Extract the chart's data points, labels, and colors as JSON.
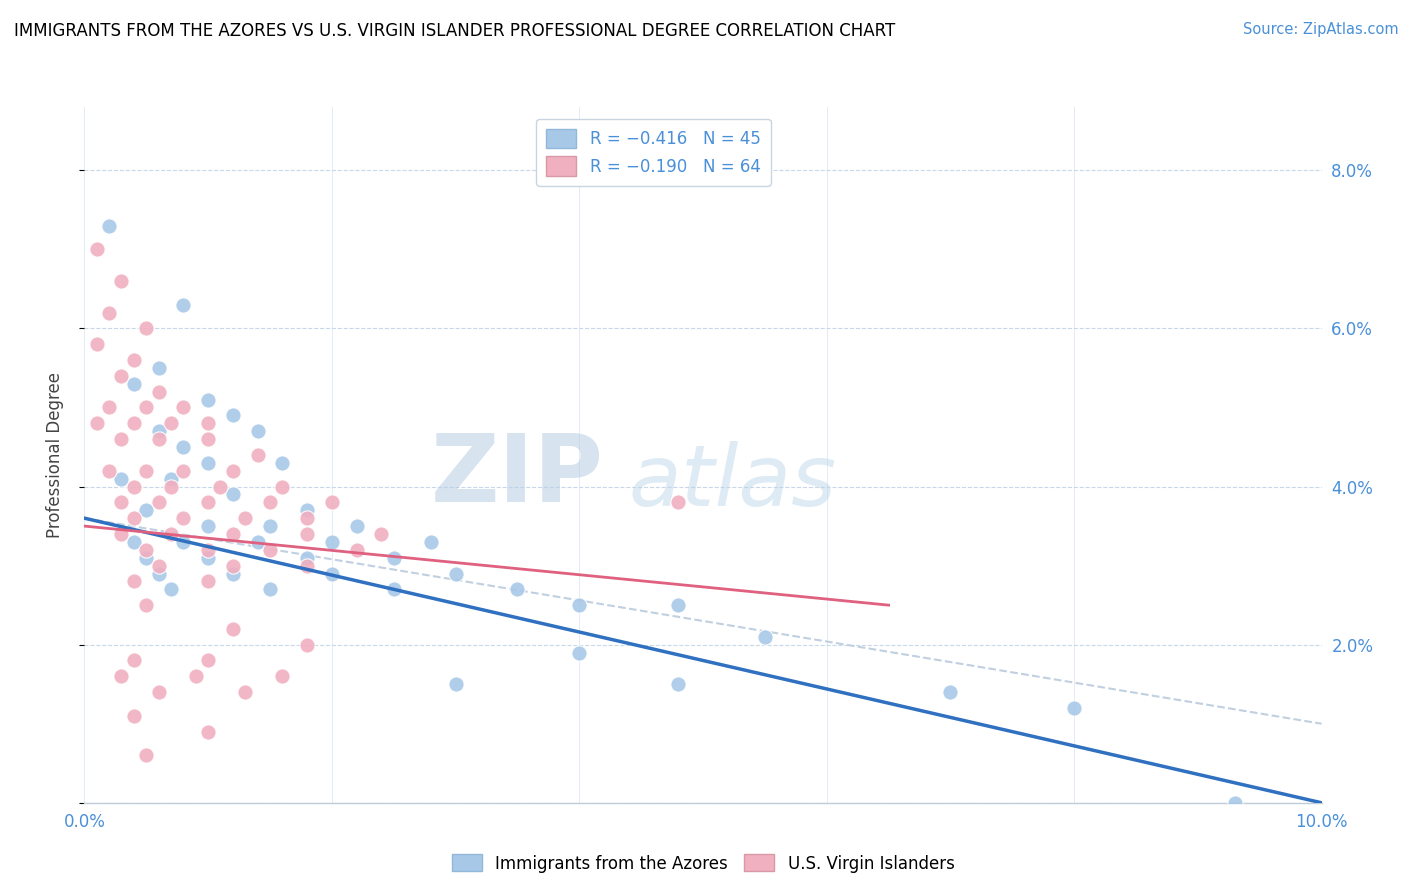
{
  "title": "IMMIGRANTS FROM THE AZORES VS U.S. VIRGIN ISLANDER PROFESSIONAL DEGREE CORRELATION CHART",
  "source": "Source: ZipAtlas.com",
  "ylabel": "Professional Degree",
  "xlim": [
    0.0,
    0.1
  ],
  "ylim": [
    0.0,
    0.088
  ],
  "blue_color": "#a8c8e8",
  "pink_color": "#f0b0c0",
  "blue_line_color": "#3070c0",
  "pink_line_color": "#e06080",
  "dashed_line_color": "#c0d0e0",
  "blue_scatter": [
    [
      0.002,
      0.073
    ],
    [
      0.008,
      0.063
    ],
    [
      0.006,
      0.055
    ],
    [
      0.004,
      0.053
    ],
    [
      0.01,
      0.051
    ],
    [
      0.012,
      0.049
    ],
    [
      0.006,
      0.047
    ],
    [
      0.014,
      0.047
    ],
    [
      0.008,
      0.045
    ],
    [
      0.01,
      0.043
    ],
    [
      0.016,
      0.043
    ],
    [
      0.003,
      0.041
    ],
    [
      0.007,
      0.041
    ],
    [
      0.012,
      0.039
    ],
    [
      0.018,
      0.037
    ],
    [
      0.005,
      0.037
    ],
    [
      0.01,
      0.035
    ],
    [
      0.015,
      0.035
    ],
    [
      0.022,
      0.035
    ],
    [
      0.004,
      0.033
    ],
    [
      0.008,
      0.033
    ],
    [
      0.014,
      0.033
    ],
    [
      0.02,
      0.033
    ],
    [
      0.028,
      0.033
    ],
    [
      0.005,
      0.031
    ],
    [
      0.01,
      0.031
    ],
    [
      0.018,
      0.031
    ],
    [
      0.025,
      0.031
    ],
    [
      0.006,
      0.029
    ],
    [
      0.012,
      0.029
    ],
    [
      0.02,
      0.029
    ],
    [
      0.03,
      0.029
    ],
    [
      0.007,
      0.027
    ],
    [
      0.015,
      0.027
    ],
    [
      0.025,
      0.027
    ],
    [
      0.035,
      0.027
    ],
    [
      0.04,
      0.025
    ],
    [
      0.048,
      0.025
    ],
    [
      0.055,
      0.021
    ],
    [
      0.04,
      0.019
    ],
    [
      0.03,
      0.015
    ],
    [
      0.048,
      0.015
    ],
    [
      0.07,
      0.014
    ],
    [
      0.08,
      0.012
    ],
    [
      0.093,
      0.0
    ]
  ],
  "pink_scatter": [
    [
      0.001,
      0.07
    ],
    [
      0.003,
      0.066
    ],
    [
      0.002,
      0.062
    ],
    [
      0.005,
      0.06
    ],
    [
      0.001,
      0.058
    ],
    [
      0.004,
      0.056
    ],
    [
      0.003,
      0.054
    ],
    [
      0.006,
      0.052
    ],
    [
      0.002,
      0.05
    ],
    [
      0.005,
      0.05
    ],
    [
      0.008,
      0.05
    ],
    [
      0.001,
      0.048
    ],
    [
      0.004,
      0.048
    ],
    [
      0.007,
      0.048
    ],
    [
      0.01,
      0.048
    ],
    [
      0.003,
      0.046
    ],
    [
      0.006,
      0.046
    ],
    [
      0.01,
      0.046
    ],
    [
      0.014,
      0.044
    ],
    [
      0.002,
      0.042
    ],
    [
      0.005,
      0.042
    ],
    [
      0.008,
      0.042
    ],
    [
      0.012,
      0.042
    ],
    [
      0.004,
      0.04
    ],
    [
      0.007,
      0.04
    ],
    [
      0.011,
      0.04
    ],
    [
      0.016,
      0.04
    ],
    [
      0.003,
      0.038
    ],
    [
      0.006,
      0.038
    ],
    [
      0.01,
      0.038
    ],
    [
      0.015,
      0.038
    ],
    [
      0.02,
      0.038
    ],
    [
      0.004,
      0.036
    ],
    [
      0.008,
      0.036
    ],
    [
      0.013,
      0.036
    ],
    [
      0.018,
      0.036
    ],
    [
      0.003,
      0.034
    ],
    [
      0.007,
      0.034
    ],
    [
      0.012,
      0.034
    ],
    [
      0.018,
      0.034
    ],
    [
      0.024,
      0.034
    ],
    [
      0.005,
      0.032
    ],
    [
      0.01,
      0.032
    ],
    [
      0.015,
      0.032
    ],
    [
      0.022,
      0.032
    ],
    [
      0.006,
      0.03
    ],
    [
      0.012,
      0.03
    ],
    [
      0.018,
      0.03
    ],
    [
      0.004,
      0.028
    ],
    [
      0.01,
      0.028
    ],
    [
      0.048,
      0.038
    ],
    [
      0.005,
      0.025
    ],
    [
      0.012,
      0.022
    ],
    [
      0.018,
      0.02
    ],
    [
      0.004,
      0.018
    ],
    [
      0.01,
      0.018
    ],
    [
      0.003,
      0.016
    ],
    [
      0.009,
      0.016
    ],
    [
      0.016,
      0.016
    ],
    [
      0.006,
      0.014
    ],
    [
      0.013,
      0.014
    ],
    [
      0.004,
      0.011
    ],
    [
      0.01,
      0.009
    ],
    [
      0.005,
      0.006
    ]
  ],
  "blue_trend_x": [
    0.0,
    0.1
  ],
  "blue_trend_y": [
    0.036,
    0.0
  ],
  "pink_trend_x": [
    0.0,
    0.065
  ],
  "pink_trend_y": [
    0.035,
    0.025
  ],
  "dashed_trend_x": [
    0.0,
    0.1
  ],
  "dashed_trend_y": [
    0.036,
    0.01
  ],
  "x_tick_positions": [
    0.0,
    0.02,
    0.04,
    0.06,
    0.08,
    0.1
  ],
  "y_tick_positions": [
    0.0,
    0.02,
    0.04,
    0.06,
    0.08
  ],
  "right_ytick_labels": [
    "",
    "2.0%",
    "4.0%",
    "6.0%",
    "8.0%"
  ],
  "tick_color": "#4a90d9"
}
